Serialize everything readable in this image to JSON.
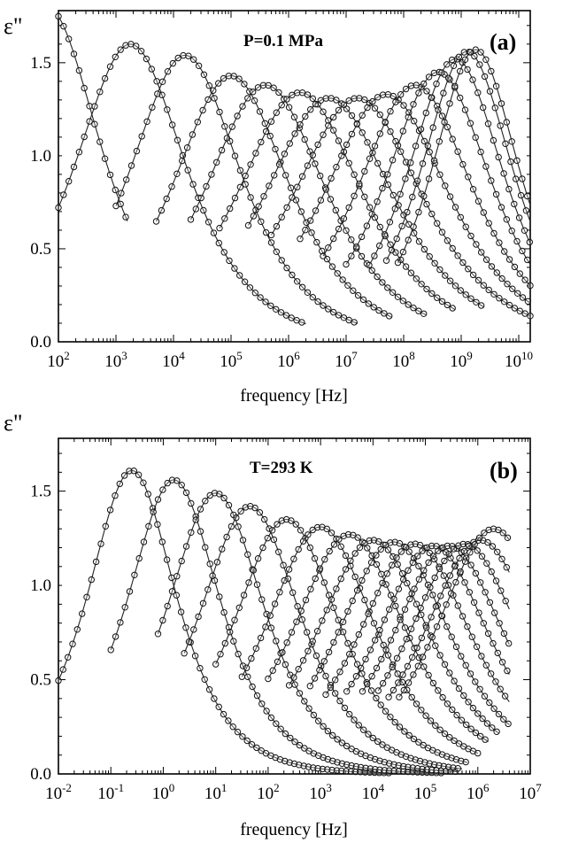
{
  "chart_data": [
    {
      "type": "scatter",
      "ylabel": "ε\"",
      "xlabel": "frequency [Hz]",
      "annotation": "P=0.1 MPa",
      "panel_label": "(a)",
      "xscale": "log",
      "xlim_log10": [
        2,
        10.2
      ],
      "ylim": [
        0,
        1.78
      ],
      "x_tick_labels": [
        {
          "base": "10",
          "exp": "2",
          "log10": 2
        },
        {
          "base": "10",
          "exp": "3",
          "log10": 3
        },
        {
          "base": "10",
          "exp": "4",
          "log10": 4
        },
        {
          "base": "10",
          "exp": "5",
          "log10": 5
        },
        {
          "base": "10",
          "exp": "6",
          "log10": 6
        },
        {
          "base": "10",
          "exp": "7",
          "log10": 7
        },
        {
          "base": "10",
          "exp": "8",
          "log10": 8
        },
        {
          "base": "10",
          "exp": "9",
          "log10": 9
        },
        {
          "base": "10",
          "exp": "10",
          "log10": 10
        }
      ],
      "y_tick_labels": [
        "0.0",
        "0.5",
        "1.0",
        "1.5"
      ],
      "y_tick_values": [
        0,
        0.5,
        1.0,
        1.5
      ],
      "markers": "open circles with fitted lines",
      "series_peaks": [
        {
          "peak_log10_f": 1.8,
          "peak_value": 1.8,
          "half_width_decades": 1.1,
          "min_log10_f": 2.0,
          "max_log10_f": 3.2
        },
        {
          "peak_log10_f": 3.25,
          "peak_value": 1.6,
          "half_width_decades": 1.15,
          "min_log10_f": 2.0,
          "max_log10_f": 6.3
        },
        {
          "peak_log10_f": 4.2,
          "peak_value": 1.54,
          "half_width_decades": 1.15,
          "min_log10_f": 3.0,
          "max_log10_f": 7.2
        },
        {
          "peak_log10_f": 5.0,
          "peak_value": 1.43,
          "half_width_decades": 1.2,
          "min_log10_f": 3.7,
          "max_log10_f": 7.8
        },
        {
          "peak_log10_f": 5.6,
          "peak_value": 1.38,
          "half_width_decades": 1.25,
          "min_log10_f": 4.3,
          "max_log10_f": 8.4
        },
        {
          "peak_log10_f": 6.2,
          "peak_value": 1.34,
          "half_width_decades": 1.3,
          "min_log10_f": 4.8,
          "max_log10_f": 8.9
        },
        {
          "peak_log10_f": 6.7,
          "peak_value": 1.31,
          "half_width_decades": 1.35,
          "min_log10_f": 5.3,
          "max_log10_f": 9.4
        },
        {
          "peak_log10_f": 7.2,
          "peak_value": 1.31,
          "half_width_decades": 1.35,
          "min_log10_f": 5.7,
          "max_log10_f": 10.2
        },
        {
          "peak_log10_f": 7.7,
          "peak_value": 1.33,
          "half_width_decades": 1.3,
          "min_log10_f": 6.2,
          "max_log10_f": 10.2
        },
        {
          "peak_log10_f": 8.2,
          "peak_value": 1.38,
          "half_width_decades": 1.2,
          "min_log10_f": 6.6,
          "max_log10_f": 10.2
        },
        {
          "peak_log10_f": 8.6,
          "peak_value": 1.45,
          "half_width_decades": 1.1,
          "min_log10_f": 7.0,
          "max_log10_f": 10.2
        },
        {
          "peak_log10_f": 8.9,
          "peak_value": 1.52,
          "half_width_decades": 1.0,
          "min_log10_f": 7.4,
          "max_log10_f": 10.2
        },
        {
          "peak_log10_f": 9.1,
          "peak_value": 1.56,
          "half_width_decades": 0.95,
          "min_log10_f": 7.7,
          "max_log10_f": 10.2
        },
        {
          "peak_log10_f": 9.25,
          "peak_value": 1.57,
          "half_width_decades": 0.9,
          "min_log10_f": 7.9,
          "max_log10_f": 10.2
        }
      ]
    },
    {
      "type": "scatter",
      "ylabel": "ε\"",
      "xlabel": "frequency [Hz]",
      "annotation": "T=293 K",
      "panel_label": "(b)",
      "xscale": "log",
      "xlim_log10": [
        -2,
        7
      ],
      "ylim": [
        0,
        1.78
      ],
      "x_tick_labels": [
        {
          "base": "10",
          "exp": "-2",
          "log10": -2
        },
        {
          "base": "10",
          "exp": "-1",
          "log10": -1
        },
        {
          "base": "10",
          "exp": "0",
          "log10": 0
        },
        {
          "base": "10",
          "exp": "1",
          "log10": 1
        },
        {
          "base": "10",
          "exp": "2",
          "log10": 2
        },
        {
          "base": "10",
          "exp": "3",
          "log10": 3
        },
        {
          "base": "10",
          "exp": "4",
          "log10": 4
        },
        {
          "base": "10",
          "exp": "5",
          "log10": 5
        },
        {
          "base": "10",
          "exp": "6",
          "log10": 6
        },
        {
          "base": "10",
          "exp": "7",
          "log10": 7
        }
      ],
      "y_tick_labels": [
        "0.0",
        "0.5",
        "1.0",
        "1.5"
      ],
      "y_tick_values": [
        0,
        0.5,
        1.0,
        1.5
      ],
      "markers": "open circles with fitted lines",
      "series_peaks": [
        {
          "peak_log10_f": -0.6,
          "peak_value": 1.61,
          "half_width_decades": 1.0,
          "min_log10_f": -2.0,
          "max_log10_f": 5.3
        },
        {
          "peak_log10_f": 0.2,
          "peak_value": 1.56,
          "half_width_decades": 1.05,
          "min_log10_f": -1.0,
          "max_log10_f": 5.5
        },
        {
          "peak_log10_f": 1.0,
          "peak_value": 1.49,
          "half_width_decades": 1.1,
          "min_log10_f": -0.1,
          "max_log10_f": 5.6
        },
        {
          "peak_log10_f": 1.65,
          "peak_value": 1.42,
          "half_width_decades": 1.15,
          "min_log10_f": 0.4,
          "max_log10_f": 5.7
        },
        {
          "peak_log10_f": 2.35,
          "peak_value": 1.35,
          "half_width_decades": 1.2,
          "min_log10_f": 1.0,
          "max_log10_f": 5.8
        },
        {
          "peak_log10_f": 3.0,
          "peak_value": 1.31,
          "half_width_decades": 1.25,
          "min_log10_f": 1.5,
          "max_log10_f": 6.0
        },
        {
          "peak_log10_f": 3.55,
          "peak_value": 1.27,
          "half_width_decades": 1.3,
          "min_log10_f": 2.0,
          "max_log10_f": 6.2
        },
        {
          "peak_log10_f": 4.0,
          "peak_value": 1.24,
          "half_width_decades": 1.3,
          "min_log10_f": 2.4,
          "max_log10_f": 6.4
        },
        {
          "peak_log10_f": 4.4,
          "peak_value": 1.23,
          "half_width_decades": 1.3,
          "min_log10_f": 2.8,
          "max_log10_f": 6.6
        },
        {
          "peak_log10_f": 4.8,
          "peak_value": 1.22,
          "half_width_decades": 1.3,
          "min_log10_f": 3.1,
          "max_log10_f": 6.6
        },
        {
          "peak_log10_f": 5.15,
          "peak_value": 1.21,
          "half_width_decades": 1.3,
          "min_log10_f": 3.5,
          "max_log10_f": 6.6
        },
        {
          "peak_log10_f": 5.45,
          "peak_value": 1.21,
          "half_width_decades": 1.3,
          "min_log10_f": 3.8,
          "max_log10_f": 6.6
        },
        {
          "peak_log10_f": 5.75,
          "peak_value": 1.22,
          "half_width_decades": 1.3,
          "min_log10_f": 4.1,
          "max_log10_f": 6.6
        },
        {
          "peak_log10_f": 6.05,
          "peak_value": 1.24,
          "half_width_decades": 1.3,
          "min_log10_f": 4.3,
          "max_log10_f": 6.6
        },
        {
          "peak_log10_f": 6.3,
          "peak_value": 1.3,
          "half_width_decades": 1.3,
          "min_log10_f": 4.5,
          "max_log10_f": 6.6
        }
      ]
    }
  ]
}
